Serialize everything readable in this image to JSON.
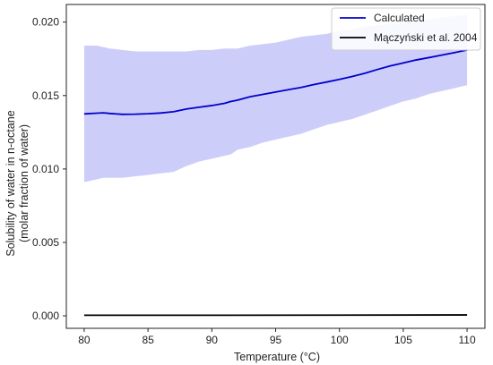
{
  "chart_data": {
    "type": "line",
    "title": "",
    "xlabel": "Temperature (°C)",
    "ylabel": [
      "Solubility of water in n-octane",
      "(molar fraction of water)"
    ],
    "xlim": [
      78.6,
      111.4
    ],
    "ylim": [
      -0.00085,
      0.0212
    ],
    "x_ticks": [
      80,
      85,
      90,
      95,
      100,
      105,
      110
    ],
    "y_ticks": [
      0.0,
      0.005,
      0.01,
      0.015,
      0.02
    ],
    "y_tick_labels": [
      "0.000",
      "0.005",
      "0.010",
      "0.015",
      "0.020"
    ],
    "grid": false,
    "legend": {
      "position": "top-right",
      "entries": [
        {
          "label": "Calculated",
          "color": "#0000cc"
        },
        {
          "label": "Mączyński et al. 2004",
          "color": "#000000"
        }
      ]
    },
    "series": [
      {
        "name": "Calculated",
        "color": "#0000cc",
        "x": [
          80,
          81,
          81.5,
          82,
          83,
          84,
          85,
          86,
          87,
          88,
          89,
          90,
          91,
          91.5,
          92,
          93,
          94,
          95,
          96,
          97,
          98,
          99,
          100,
          101,
          102,
          103,
          104,
          105,
          106,
          107,
          108,
          109,
          110
        ],
        "y": [
          0.01375,
          0.0138,
          0.01382,
          0.01378,
          0.01372,
          0.01373,
          0.01376,
          0.01381,
          0.0139,
          0.01408,
          0.0142,
          0.01432,
          0.01447,
          0.0146,
          0.01468,
          0.01492,
          0.01508,
          0.01524,
          0.0154,
          0.01555,
          0.01575,
          0.01592,
          0.0161,
          0.0163,
          0.01652,
          0.01678,
          0.01702,
          0.01722,
          0.01742,
          0.01758,
          0.01775,
          0.01792,
          0.0181
        ],
        "band_lower": [
          0.0091,
          0.0093,
          0.0094,
          0.0094,
          0.0094,
          0.0095,
          0.0096,
          0.0097,
          0.0098,
          0.0102,
          0.0105,
          0.0107,
          0.0109,
          0.011,
          0.0113,
          0.0115,
          0.0118,
          0.012,
          0.0122,
          0.0124,
          0.0127,
          0.013,
          0.0132,
          0.0134,
          0.0137,
          0.014,
          0.0143,
          0.0146,
          0.0148,
          0.0151,
          0.0153,
          0.0155,
          0.0157
        ],
        "band_upper": [
          0.0184,
          0.0184,
          0.0183,
          0.0182,
          0.0181,
          0.018,
          0.018,
          0.018,
          0.018,
          0.018,
          0.0181,
          0.0181,
          0.0182,
          0.0182,
          0.0182,
          0.0184,
          0.0185,
          0.0186,
          0.0188,
          0.019,
          0.0191,
          0.0192,
          0.0194,
          0.0195,
          0.0197,
          0.0198,
          0.0199,
          0.02,
          0.0201,
          0.0202,
          0.0203,
          0.0204,
          0.0205
        ],
        "band_color": "#c8c8fa"
      },
      {
        "name": "Mączyński et al. 2004",
        "color": "#000000",
        "x": [
          80,
          90,
          100,
          110
        ],
        "y": [
          4e-05,
          4e-05,
          5e-05,
          6e-05
        ]
      }
    ]
  }
}
